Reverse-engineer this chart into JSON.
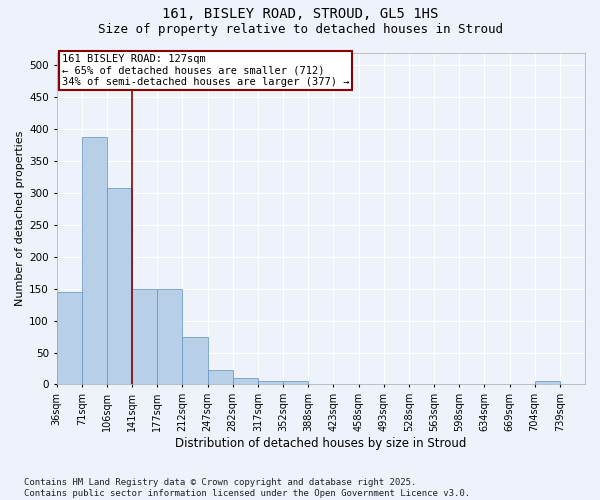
{
  "title": "161, BISLEY ROAD, STROUD, GL5 1HS",
  "subtitle": "Size of property relative to detached houses in Stroud",
  "xlabel": "Distribution of detached houses by size in Stroud",
  "ylabel": "Number of detached properties",
  "bar_values": [
    145,
    388,
    308,
    150,
    150,
    75,
    22,
    10,
    5,
    5,
    0,
    0,
    0,
    0,
    0,
    0,
    0,
    0,
    0,
    5,
    0
  ],
  "categories": [
    "36sqm",
    "71sqm",
    "106sqm",
    "141sqm",
    "177sqm",
    "212sqm",
    "247sqm",
    "282sqm",
    "317sqm",
    "352sqm",
    "388sqm",
    "423sqm",
    "458sqm",
    "493sqm",
    "528sqm",
    "563sqm",
    "598sqm",
    "634sqm",
    "669sqm",
    "704sqm",
    "739sqm"
  ],
  "bar_color": "#b8cfe8",
  "bar_edge_color": "#6090c0",
  "vline_x_index": 2.5,
  "vline_color": "#8b0000",
  "annotation_text_line1": "161 BISLEY ROAD: 127sqm",
  "annotation_text_line2": "← 65% of detached houses are smaller (712)",
  "annotation_text_line3": "34% of semi-detached houses are larger (377) →",
  "annotation_box_color": "#8b0000",
  "ylim": [
    0,
    520
  ],
  "yticks": [
    0,
    50,
    100,
    150,
    200,
    250,
    300,
    350,
    400,
    450,
    500
  ],
  "background_color": "#eef2fb",
  "grid_color": "#ffffff",
  "footer": "Contains HM Land Registry data © Crown copyright and database right 2025.\nContains public sector information licensed under the Open Government Licence v3.0.",
  "title_fontsize": 10,
  "subtitle_fontsize": 9,
  "annotation_fontsize": 7.5,
  "ylabel_fontsize": 8,
  "xlabel_fontsize": 8.5,
  "tick_fontsize": 7,
  "footer_fontsize": 6.5
}
